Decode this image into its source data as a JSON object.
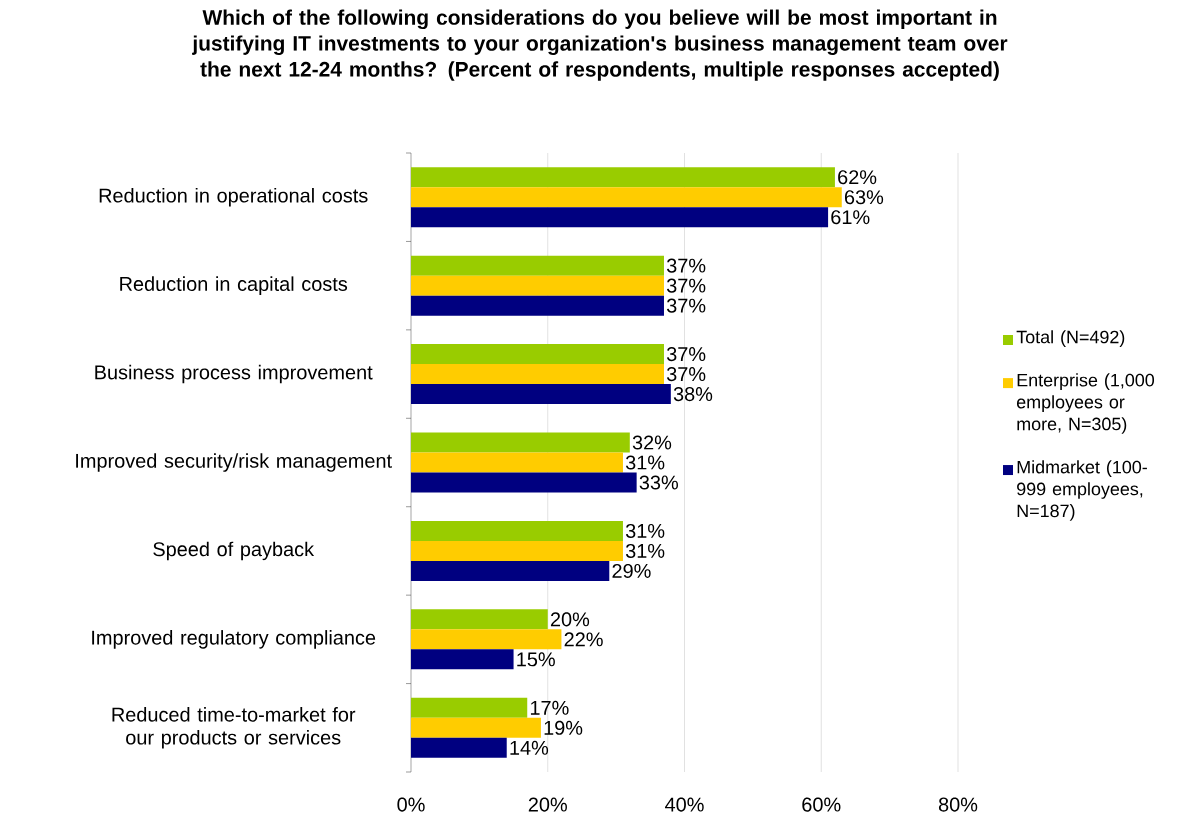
{
  "chart_data": {
    "type": "bar",
    "orientation": "horizontal",
    "title": "Which of the following considerations do you believe will be most important in justifying IT investments to your organization's business management team over the next 12-24 months? (Percent of respondents, multiple responses accepted)",
    "categories": [
      "Reduction in operational costs",
      "Reduction in capital costs",
      "Business process improvement",
      "Improved security/risk management",
      "Speed of payback",
      "Improved regulatory compliance",
      "Reduced time-to-market for our products or services"
    ],
    "series": [
      {
        "name": "Total (N=492)",
        "color": "#99cc00",
        "values": [
          62,
          37,
          37,
          32,
          31,
          20,
          17
        ],
        "value_labels": [
          "62%",
          "37%",
          "37%",
          "32%",
          "31%",
          "20%",
          "17%"
        ]
      },
      {
        "name": "Enterprise (1,000 employees or more, N=305)",
        "color": "#ffcc00",
        "values": [
          63,
          37,
          37,
          31,
          31,
          22,
          19
        ],
        "value_labels": [
          "63%",
          "37%",
          "37%",
          "31%",
          "31%",
          "22%",
          "19%"
        ]
      },
      {
        "name": "Midmarket (100-999 employees, N=187)",
        "color": "#000080",
        "values": [
          61,
          37,
          38,
          33,
          29,
          15,
          14
        ],
        "value_labels": [
          "61%",
          "37%",
          "38%",
          "33%",
          "29%",
          "15%",
          "14%"
        ]
      }
    ],
    "xlim": [
      0,
      80
    ],
    "xticks": [
      {
        "value": 0,
        "label": "0%"
      },
      {
        "value": 20,
        "label": "20%"
      },
      {
        "value": 40,
        "label": "40%"
      },
      {
        "value": 60,
        "label": "60%"
      },
      {
        "value": 80,
        "label": "80%"
      }
    ],
    "grid": "x",
    "legend": "right"
  }
}
